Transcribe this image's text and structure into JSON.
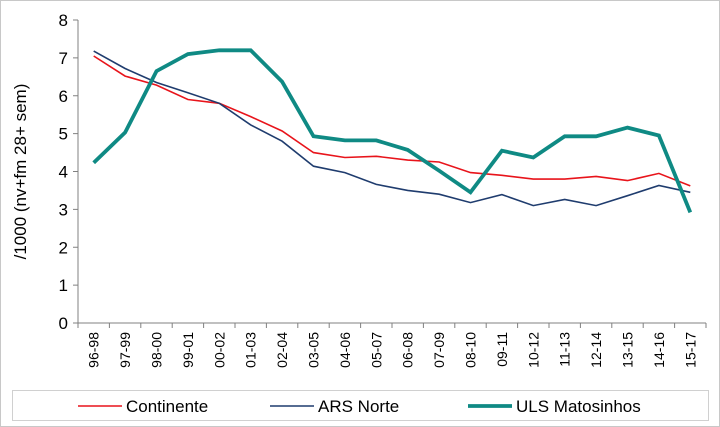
{
  "chart_data": {
    "type": "line",
    "ylabel": "/1000 (nv+fm 28+ sem)",
    "ylim": [
      0,
      8
    ],
    "yticks": [
      0,
      1,
      2,
      3,
      4,
      5,
      6,
      7,
      8
    ],
    "grid": false,
    "legend_position": "bottom",
    "categories": [
      "96-98",
      "97-99",
      "98-00",
      "99-01",
      "00-02",
      "01-03",
      "02-04",
      "03-05",
      "04-06",
      "05-07",
      "06-08",
      "07-09",
      "08-10",
      "09-11",
      "10-12",
      "11-13",
      "12-14",
      "13-15",
      "14-16",
      "15-17"
    ],
    "series": [
      {
        "name": "Continente",
        "color": "#e8141b",
        "values": [
          7.05,
          6.52,
          6.28,
          5.9,
          5.8,
          5.45,
          5.07,
          4.5,
          4.37,
          4.4,
          4.3,
          4.25,
          3.97,
          3.9,
          3.8,
          3.8,
          3.87,
          3.76,
          3.95,
          3.62
        ]
      },
      {
        "name": "ARS Norte",
        "color": "#1f3c6e",
        "values": [
          7.18,
          6.72,
          6.35,
          6.08,
          5.8,
          5.23,
          4.8,
          4.14,
          3.97,
          3.66,
          3.5,
          3.4,
          3.18,
          3.39,
          3.1,
          3.26,
          3.1,
          3.36,
          3.63,
          3.45
        ]
      },
      {
        "name": "ULS Matosinhos",
        "color": "#0f8a84",
        "values": [
          4.23,
          5.03,
          6.65,
          7.1,
          7.2,
          7.2,
          6.37,
          4.93,
          4.82,
          4.82,
          4.57,
          4.02,
          3.45,
          4.55,
          4.37,
          4.93,
          4.93,
          5.16,
          4.95,
          2.92
        ]
      }
    ]
  }
}
